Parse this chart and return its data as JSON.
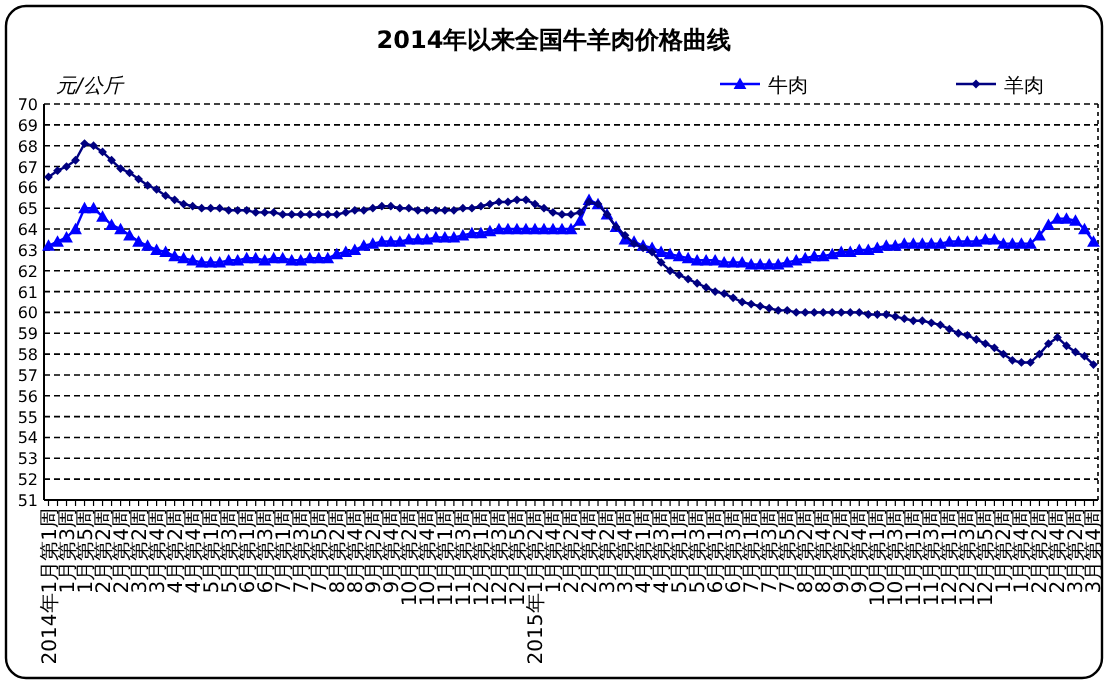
{
  "chart_data": {
    "type": "line",
    "title": "2014年以来全国牛羊肉价格曲线",
    "ylabel": "元/公斤",
    "categories": [
      "2014年1月第1周",
      null,
      "1月第3周",
      null,
      "1月第5周",
      null,
      "2月第2周",
      null,
      "2月第4周",
      null,
      "3月第2周",
      null,
      "3月第4周",
      null,
      "4月第2周",
      null,
      "4月第4周",
      null,
      "5月第1周",
      null,
      "5月第3周",
      null,
      "6月第1周",
      null,
      "6月第3周",
      null,
      "7月第1周",
      null,
      "7月第3周",
      null,
      "7月第5周",
      null,
      "8月第2周",
      null,
      "8月第4周",
      null,
      "9月第2周",
      null,
      "9月第4周",
      null,
      "10月第2周",
      null,
      "10月第4周",
      null,
      "11月第1周",
      null,
      "11月第3周",
      null,
      "12月第1周",
      null,
      "12月第3周",
      null,
      "12月第5周",
      null,
      "2015年1月第2周",
      null,
      "1月第4周",
      null,
      "2月第2周",
      null,
      "2月第4周",
      null,
      "3月第2周",
      null,
      "3月第4周",
      null,
      "4月第1周",
      null,
      "4月第3周",
      null,
      "5月第1周",
      null,
      "5月第3周",
      null,
      "6月第1周",
      null,
      "6月第3周",
      null,
      "7月第1周",
      null,
      "7月第3周",
      null,
      "7月第5周",
      null,
      "8月第2周",
      null,
      "8月第4周",
      null,
      "9月第2周",
      null,
      "9月第4周",
      null,
      "10月第1周",
      null,
      "10月第3周",
      null,
      "11月第1周",
      null,
      "11月第3周",
      null,
      "12月第1周",
      null,
      "12月第3周",
      null,
      "12月第5周",
      null,
      "1月第2周",
      null,
      "1月第4周",
      null,
      "2月第2周",
      null,
      "2月第4周",
      null,
      "3月第2周",
      null,
      "3月第4周"
    ],
    "series": [
      {
        "name": "牛肉",
        "color": "#0000ff",
        "marker": "triangle",
        "values": [
          63.2,
          63.4,
          63.6,
          64.0,
          65.0,
          65.0,
          64.6,
          64.2,
          64.0,
          63.7,
          63.4,
          63.2,
          63.0,
          62.9,
          62.7,
          62.6,
          62.5,
          62.4,
          62.4,
          62.4,
          62.5,
          62.5,
          62.6,
          62.6,
          62.5,
          62.6,
          62.6,
          62.5,
          62.5,
          62.6,
          62.6,
          62.6,
          62.8,
          62.9,
          63.0,
          63.2,
          63.3,
          63.4,
          63.4,
          63.4,
          63.5,
          63.5,
          63.5,
          63.6,
          63.6,
          63.6,
          63.7,
          63.8,
          63.8,
          63.9,
          64.0,
          64.0,
          64.0,
          64.0,
          64.0,
          64.0,
          64.0,
          64.0,
          64.0,
          64.4,
          65.4,
          65.2,
          64.7,
          64.1,
          63.5,
          63.4,
          63.2,
          63.1,
          62.9,
          62.8,
          62.7,
          62.6,
          62.5,
          62.5,
          62.5,
          62.4,
          62.4,
          62.4,
          62.3,
          62.3,
          62.3,
          62.3,
          62.4,
          62.5,
          62.6,
          62.7,
          62.7,
          62.8,
          62.9,
          62.9,
          63.0,
          63.0,
          63.1,
          63.2,
          63.2,
          63.3,
          63.3,
          63.3,
          63.3,
          63.3,
          63.4,
          63.4,
          63.4,
          63.4,
          63.5,
          63.5,
          63.3,
          63.3,
          63.3,
          63.3,
          63.7,
          64.2,
          64.5,
          64.5,
          64.4,
          64.0,
          63.4
        ]
      },
      {
        "name": "羊肉",
        "color": "#000080",
        "marker": "diamond",
        "values": [
          66.5,
          66.8,
          67.0,
          67.3,
          68.1,
          68.0,
          67.7,
          67.3,
          66.9,
          66.7,
          66.4,
          66.1,
          65.9,
          65.6,
          65.4,
          65.2,
          65.1,
          65.0,
          65.0,
          65.0,
          64.9,
          64.9,
          64.9,
          64.8,
          64.8,
          64.8,
          64.7,
          64.7,
          64.7,
          64.7,
          64.7,
          64.7,
          64.7,
          64.8,
          64.9,
          64.9,
          65.0,
          65.1,
          65.1,
          65.0,
          65.0,
          64.9,
          64.9,
          64.9,
          64.9,
          64.9,
          65.0,
          65.0,
          65.1,
          65.2,
          65.3,
          65.3,
          65.4,
          65.4,
          65.2,
          65.0,
          64.8,
          64.7,
          64.7,
          64.8,
          65.3,
          65.2,
          64.7,
          64.1,
          63.7,
          63.3,
          63.1,
          62.9,
          62.4,
          62.0,
          61.8,
          61.6,
          61.4,
          61.2,
          61.0,
          60.9,
          60.7,
          60.5,
          60.4,
          60.3,
          60.2,
          60.1,
          60.1,
          60.0,
          60.0,
          60.0,
          60.0,
          60.0,
          60.0,
          60.0,
          60.0,
          59.9,
          59.9,
          59.9,
          59.8,
          59.7,
          59.6,
          59.6,
          59.5,
          59.4,
          59.2,
          59.0,
          58.9,
          58.7,
          58.5,
          58.3,
          58.0,
          57.7,
          57.6,
          57.6,
          58.0,
          58.5,
          58.8,
          58.4,
          58.1,
          57.9,
          57.5
        ]
      }
    ],
    "ylim": [
      51,
      70
    ],
    "yticks": [
      51,
      52,
      53,
      54,
      55,
      56,
      57,
      58,
      59,
      60,
      61,
      62,
      63,
      64,
      65,
      66,
      67,
      68,
      69,
      70
    ],
    "grid": "y",
    "legend": "top right",
    "line_style": "solid"
  }
}
